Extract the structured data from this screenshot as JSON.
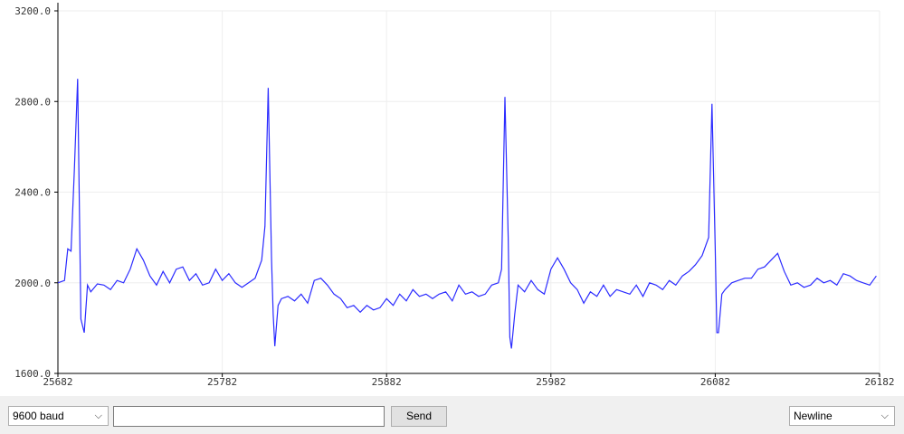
{
  "chart_data": {
    "type": "line",
    "x_range": [
      25682,
      26182
    ],
    "ylim": [
      1600.0,
      3200.0
    ],
    "x_ticks": [
      "25682",
      "25782",
      "25882",
      "25982",
      "26082",
      "26182"
    ],
    "y_ticks": [
      "3200.0",
      "2800.0",
      "2400.0",
      "2000.0",
      "1600.0"
    ],
    "grid": true,
    "series": [
      {
        "color": "#2b2bff",
        "x": [
          25682,
          25686,
          25688,
          25690,
          25692,
          25694,
          25696,
          25698,
          25700,
          25702,
          25706,
          25710,
          25714,
          25718,
          25722,
          25726,
          25730,
          25734,
          25738,
          25742,
          25746,
          25750,
          25754,
          25758,
          25762,
          25766,
          25770,
          25774,
          25778,
          25782,
          25786,
          25790,
          25794,
          25798,
          25802,
          25806,
          25808,
          25810,
          25812,
          25813,
          25814,
          25816,
          25818,
          25822,
          25826,
          25830,
          25834,
          25838,
          25842,
          25846,
          25850,
          25854,
          25858,
          25862,
          25866,
          25870,
          25874,
          25878,
          25882,
          25886,
          25890,
          25894,
          25898,
          25902,
          25906,
          25910,
          25914,
          25918,
          25922,
          25926,
          25930,
          25934,
          25938,
          25942,
          25946,
          25950,
          25952,
          25954,
          25956,
          25957,
          25958,
          25960,
          25962,
          25966,
          25970,
          25974,
          25978,
          25982,
          25986,
          25990,
          25994,
          25998,
          26002,
          26006,
          26010,
          26014,
          26018,
          26022,
          26026,
          26030,
          26034,
          26038,
          26042,
          26046,
          26050,
          26054,
          26058,
          26062,
          26066,
          26070,
          26074,
          26078,
          26080,
          26082,
          26083,
          26084,
          26086,
          26088,
          26092,
          26096,
          26100,
          26104,
          26108,
          26112,
          26116,
          26120,
          26124,
          26128,
          26132,
          26136,
          26140,
          26144,
          26148,
          26152,
          26156,
          26160,
          26164,
          26168,
          26172,
          26176,
          26180
        ],
        "y": [
          2000,
          2010,
          2150,
          2140,
          2500,
          2900,
          1840,
          1780,
          1990,
          1960,
          1995,
          1990,
          1970,
          2010,
          2000,
          2060,
          2150,
          2100,
          2030,
          1990,
          2050,
          2000,
          2060,
          2070,
          2010,
          2040,
          1990,
          2000,
          2060,
          2010,
          2040,
          2000,
          1980,
          2000,
          2020,
          2100,
          2250,
          2860,
          2100,
          1860,
          1720,
          1900,
          1930,
          1940,
          1920,
          1950,
          1910,
          2010,
          2020,
          1990,
          1950,
          1930,
          1890,
          1900,
          1870,
          1900,
          1880,
          1890,
          1930,
          1900,
          1950,
          1920,
          1970,
          1940,
          1950,
          1930,
          1950,
          1960,
          1920,
          1990,
          1950,
          1960,
          1940,
          1950,
          1990,
          2000,
          2060,
          2820,
          2200,
          1760,
          1710,
          1860,
          1990,
          1960,
          2010,
          1970,
          1950,
          2060,
          2110,
          2060,
          2000,
          1970,
          1910,
          1960,
          1940,
          1990,
          1940,
          1970,
          1960,
          1950,
          1990,
          1940,
          2000,
          1990,
          1970,
          2010,
          1990,
          2030,
          2050,
          2080,
          2120,
          2200,
          2790,
          2150,
          1780,
          1780,
          1950,
          1970,
          2000,
          2010,
          2020,
          2020,
          2060,
          2070,
          2100,
          2130,
          2050,
          1990,
          2000,
          1980,
          1990,
          2020,
          2000,
          2010,
          1990,
          2040,
          2030,
          2010,
          2000,
          1990,
          2030
        ]
      }
    ]
  },
  "controls": {
    "baud_value": "9600 baud",
    "input_value": "",
    "send_label": "Send",
    "line_ending_value": "Newline",
    "chevron_glyph": "⌵"
  }
}
